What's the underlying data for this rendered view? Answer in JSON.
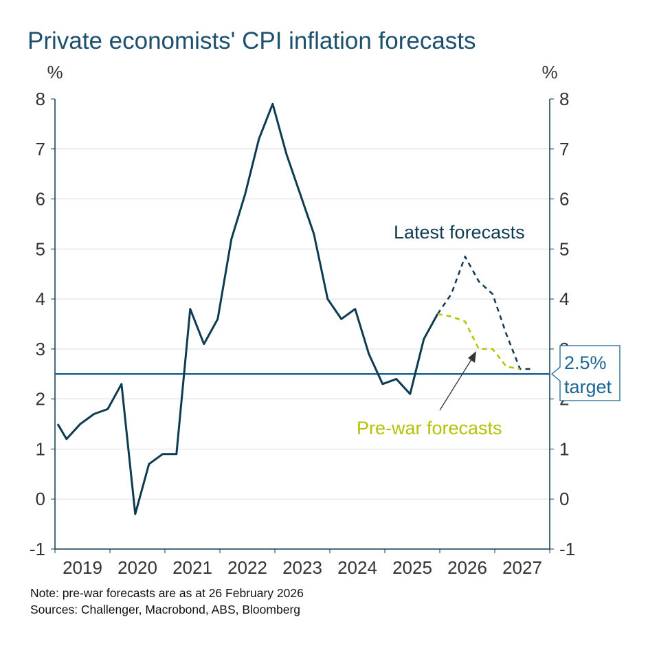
{
  "chart_data": {
    "type": "line",
    "title": "Private economists' CPI inflation forecasts",
    "ylabel_left": "%",
    "ylabel_right": "%",
    "ylim": [
      -1,
      8
    ],
    "yticks": [
      -1,
      0,
      1,
      2,
      3,
      4,
      5,
      6,
      7,
      8
    ],
    "xlim": [
      2019,
      2028
    ],
    "xtick_labels": [
      "2019",
      "2020",
      "2021",
      "2022",
      "2023",
      "2024",
      "2025",
      "2026",
      "2027"
    ],
    "grid": true,
    "series": [
      {
        "name": "",
        "style": "solid",
        "color": "#0d3b4f",
        "x": [
          2019.05,
          2019.21,
          2019.46,
          2019.71,
          2019.96,
          2020.21,
          2020.46,
          2020.71,
          2020.96,
          2021.21,
          2021.46,
          2021.71,
          2021.96,
          2022.21,
          2022.46,
          2022.71,
          2022.96,
          2023.21,
          2023.46,
          2023.71,
          2023.96,
          2024.21,
          2024.46,
          2024.71,
          2024.96,
          2025.21,
          2025.46,
          2025.71,
          2025.96
        ],
        "y": [
          1.5,
          1.2,
          1.5,
          1.7,
          1.8,
          2.3,
          -0.3,
          0.7,
          0.9,
          0.9,
          3.8,
          3.1,
          3.6,
          5.2,
          6.1,
          7.2,
          7.9,
          6.9,
          6.1,
          5.3,
          4.0,
          3.6,
          3.8,
          2.9,
          2.3,
          2.4,
          2.1,
          3.2,
          3.7
        ]
      },
      {
        "name": "Latest forecasts",
        "style": "dashed",
        "color": "#0d3b4f",
        "x": [
          2025.96,
          2026.21,
          2026.46,
          2026.71,
          2026.96,
          2027.21,
          2027.46,
          2027.71
        ],
        "y": [
          3.7,
          4.1,
          4.85,
          4.35,
          4.1,
          3.3,
          2.6,
          2.6
        ]
      },
      {
        "name": "Pre-war forecasts",
        "style": "dashed",
        "color": "#b5c200",
        "x": [
          2025.96,
          2026.21,
          2026.46,
          2026.71,
          2026.96,
          2027.21,
          2027.46
        ],
        "y": [
          3.7,
          3.65,
          3.55,
          3.0,
          3.0,
          2.65,
          2.6
        ]
      }
    ],
    "reference_line": {
      "y": 2.5,
      "label_line1": "2.5%",
      "label_line2": "target",
      "color": "#1a6496"
    },
    "annotations": {
      "latest": "Latest forecasts",
      "prewar": "Pre-war forecasts"
    }
  },
  "notes": {
    "note": "Note: pre-war forecasts are as at 26 February 2026",
    "sources": "Sources: Challenger, Macrobond, ABS, Bloomberg"
  }
}
